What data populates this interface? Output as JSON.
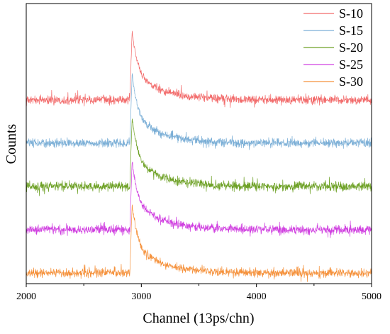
{
  "chart_data": {
    "type": "line",
    "xlabel": "Channel (13ps/chn)",
    "ylabel": "Counts",
    "xlim": [
      2000,
      5000
    ],
    "xticks": [
      2000,
      3000,
      4000,
      5000
    ],
    "x_minor_ticks": [
      2500,
      3500,
      4500
    ],
    "y_tick_labels": false,
    "grid": false,
    "legend_position": "top-right",
    "curve_shape": "flat noisy baseline, sharp rise near channel 2900, peak near channel 2920, gradual decay back to baseline near channel 4000",
    "x_rise": 2900,
    "x_peak": 2920,
    "x_tail_end": 4000,
    "series": [
      {
        "name": "S-10",
        "color": "#f26b6b",
        "stack_rank": 1
      },
      {
        "name": "S-15",
        "color": "#7aaed6",
        "stack_rank": 2
      },
      {
        "name": "S-20",
        "color": "#6ea126",
        "stack_rank": 3
      },
      {
        "name": "S-25",
        "color": "#d040e0",
        "stack_rank": 4
      },
      {
        "name": "S-30",
        "color": "#f5913b",
        "stack_rank": 5
      }
    ]
  }
}
